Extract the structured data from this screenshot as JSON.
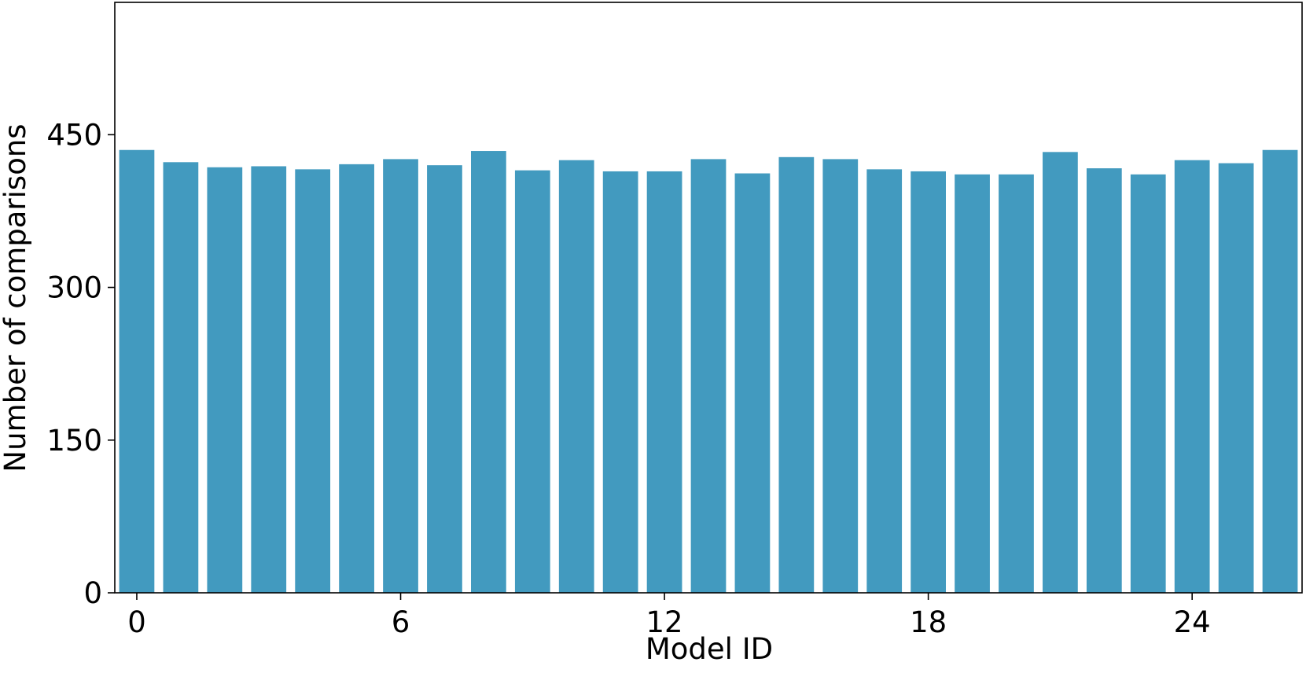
{
  "chart_data": {
    "type": "bar",
    "x_label": "Model ID",
    "y_label": "Number of comparisons",
    "x": [
      0,
      1,
      2,
      3,
      4,
      5,
      6,
      7,
      8,
      9,
      10,
      11,
      12,
      13,
      14,
      15,
      16,
      17,
      18,
      19,
      20,
      21,
      22,
      23,
      24,
      25,
      26
    ],
    "values": [
      435,
      423,
      418,
      419,
      416,
      421,
      426,
      420,
      434,
      415,
      425,
      414,
      414,
      426,
      412,
      428,
      426,
      416,
      414,
      411,
      411,
      433,
      417,
      411,
      425,
      422,
      435
    ],
    "color": "#429abf",
    "xlim": [
      -0.5,
      26.5
    ],
    "xticks": [
      0,
      6,
      12,
      18,
      24
    ],
    "ylim": [
      0,
      580
    ],
    "yticks": [
      0,
      150,
      300,
      450
    ],
    "grid": false
  }
}
